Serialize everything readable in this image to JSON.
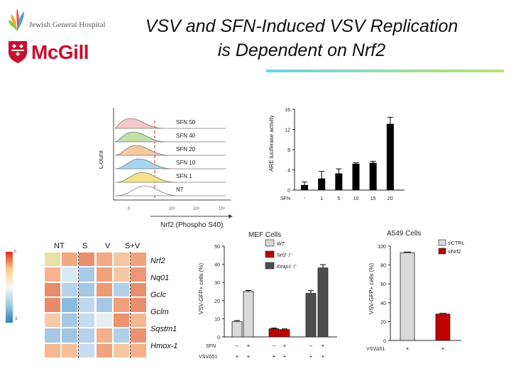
{
  "header": {
    "title_line1": "VSV and SFN-Induced VSV Replication",
    "title_line2": "is Dependent on Nrf2",
    "logo_jgh_text": "Jewish General Hospital",
    "logo_mcgill_text": "McGill"
  },
  "flow": {
    "y_label": "Count",
    "x_label": "Nrf2 (Phospho S40)",
    "x_ticks": [
      "0",
      "10³",
      "10⁴",
      "10⁵"
    ],
    "rows": [
      {
        "label": "SFN 50",
        "color": "#f4c8c8"
      },
      {
        "label": "SFN 40",
        "color": "#bfe0a8"
      },
      {
        "label": "SFN 20",
        "color": "#f7c9a0"
      },
      {
        "label": "SFN 10",
        "color": "#a9d6f0"
      },
      {
        "label": "SFN 1",
        "color": "#f3e18a"
      },
      {
        "label": "NT",
        "color": "#ffffff"
      }
    ]
  },
  "chart_data": [
    {
      "type": "bar",
      "id": "are-luciferase",
      "ylabel": "ARE luciferase activity",
      "xlabel": "SFN",
      "categories": [
        "-",
        "1",
        "5",
        "10",
        "15",
        "20"
      ],
      "values": [
        1.0,
        2.3,
        3.3,
        5.2,
        5.4,
        13.1
      ],
      "errors": [
        0.6,
        1.4,
        0.9,
        0.2,
        0.3,
        1.3
      ],
      "ylim": [
        0,
        16
      ],
      "yticks": [
        "0",
        "4",
        "8",
        "12",
        "16"
      ]
    },
    {
      "type": "bar",
      "id": "mef-cells",
      "title": "MEF Cells",
      "ylabel": "VSV-GFP+ cells (%)",
      "ylim": [
        0,
        50
      ],
      "yticks": [
        "0",
        "10",
        "20",
        "30",
        "40",
        "50"
      ],
      "row_labels": [
        "SFN",
        "VSVΔ51"
      ],
      "sfn_row": [
        "–",
        "+",
        "–",
        "+",
        "–",
        "+"
      ],
      "vsv_row": [
        "+",
        "+",
        "+",
        "+",
        "+",
        "+"
      ],
      "series": [
        {
          "name": "WT",
          "color": "#d9d9d9",
          "values": [
            8.5,
            25.0
          ],
          "errors": [
            0.5,
            0.6
          ]
        },
        {
          "name": "Nrf2⁻/⁻",
          "color": "#c00000",
          "values": [
            4.5,
            4.0
          ],
          "errors": [
            0.4,
            0.4
          ]
        },
        {
          "name": "Keap1⁻/⁻",
          "color": "#4d4d4d",
          "values": [
            24.0,
            38.0
          ],
          "errors": [
            1.5,
            1.8
          ]
        }
      ]
    },
    {
      "type": "bar",
      "id": "a549-cells",
      "title": "A549 Cells",
      "ylabel": "VSV-GFP+ cells (%)",
      "ylim": [
        0,
        100
      ],
      "yticks": [
        "0",
        "20",
        "40",
        "60",
        "80",
        "100"
      ],
      "row_label": "VSVΔ51",
      "row_values": [
        "+",
        "+"
      ],
      "series": [
        {
          "name": "siCTRL",
          "color": "#d9d9d9",
          "value": 93
        },
        {
          "name": "siNrf2",
          "color": "#c00000",
          "value": 28
        }
      ]
    }
  ],
  "heatmap": {
    "columns": [
      "NT",
      "S",
      "V",
      "S+V"
    ],
    "genes": [
      "Nrf2",
      "Nq01",
      "Gclc",
      "Gclm",
      "Sqstm1",
      "Hmox-1"
    ],
    "scale_ticks": [
      "5",
      "",
      "",
      "",
      "",
      "-5"
    ],
    "colors": [
      "#e9e0a4",
      "#f3a882",
      "#ec8d6b",
      "#f2ab84",
      "#f6c6a0",
      "#f0a37d",
      "#f6b38e",
      "#d9e9f2",
      "#a8c9e6",
      "#f1a27c",
      "#f6c7a4",
      "#ee9675",
      "#e78b6a",
      "#b7d3ea",
      "#a7c7e5",
      "#ee9a76",
      "#b4d0e9",
      "#ea8f6d",
      "#e98a6a",
      "#8bbbde",
      "#bfd8ec",
      "#a6c7e4",
      "#f0a07b",
      "#eb8e6c",
      "#f6c9a6",
      "#a7c8e5",
      "#c4dbee",
      "#e8edf0",
      "#ec936f",
      "#f4b892",
      "#a7c7e5",
      "#a2c4e3",
      "#b7d2ea",
      "#f3b08a",
      "#b3cfe8",
      "#ec9170",
      "#f5b892",
      "#f6bf98",
      "#c7dcee",
      "#f1a47e",
      "#f6c6a1",
      "#f3b089"
    ]
  }
}
